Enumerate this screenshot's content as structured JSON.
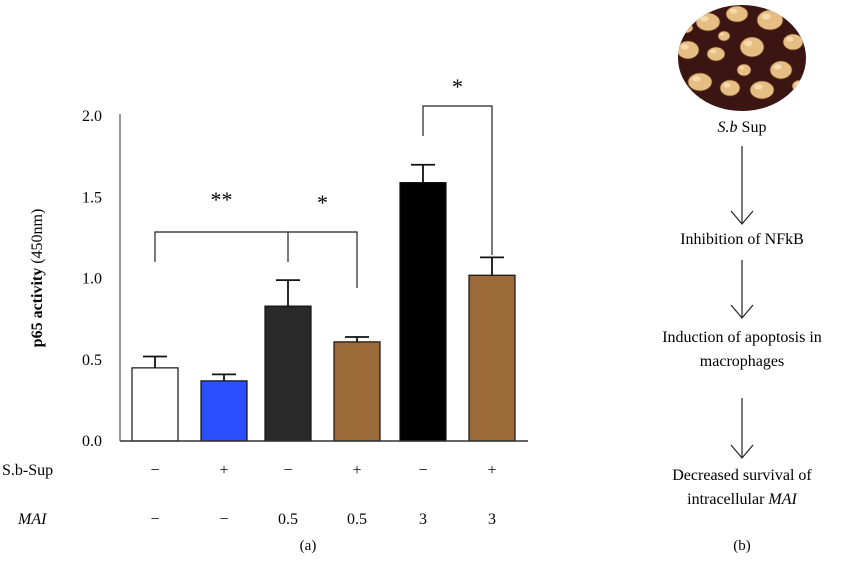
{
  "chart_data": {
    "type": "bar",
    "ylabel_bold": "p65 activity",
    "ylabel_unit": "(450nm)",
    "ylim": [
      0,
      2.0
    ],
    "yticks": [
      "0.0",
      "0.5",
      "1.0",
      "1.5",
      "2.0"
    ],
    "ytick_values": [
      0,
      0.5,
      1.0,
      1.5,
      2.0
    ],
    "values": [
      0.45,
      0.37,
      0.83,
      0.61,
      1.59,
      1.02
    ],
    "errors": [
      0.07,
      0.04,
      0.16,
      0.03,
      0.11,
      0.11
    ],
    "colors": [
      "#ffffff",
      "#2b4fff",
      "#2a2a2a",
      "#9c6a38",
      "#000000",
      "#9c6a38"
    ],
    "row_labels": [
      {
        "label": "S.b-Sup",
        "italic": false,
        "values": [
          "−",
          "+",
          "−",
          "+",
          "−",
          "+"
        ]
      },
      {
        "label": "MAI",
        "italic": true,
        "values": [
          "−",
          "−",
          "0.5",
          "0.5",
          "3",
          "3"
        ]
      }
    ],
    "significance": [
      {
        "from": 0,
        "to": 2,
        "label": "**"
      },
      {
        "from": 2,
        "to": 3,
        "label": "*"
      },
      {
        "from": 4,
        "to": 5,
        "label": "*"
      }
    ],
    "panel_label": "(a)"
  },
  "flow": {
    "sup_label_italic": "S.b",
    "sup_label_rest": " Sup",
    "steps": [
      [
        "Inhibition of NFkB"
      ],
      [
        "Induction of apoptosis in",
        "macrophages"
      ],
      [
        "Decreased survival of",
        "intracellular MAI"
      ]
    ],
    "panel_label": "(b)",
    "image_colors": {
      "background": "#3a1512",
      "cell": "#e6bd82",
      "cell_highlight": "#f7e2b8"
    }
  }
}
